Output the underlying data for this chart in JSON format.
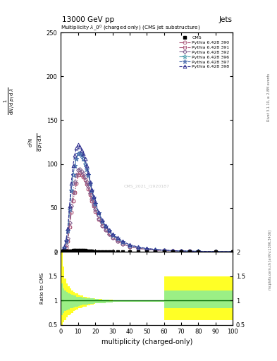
{
  "title_top": "13000 GeV pp",
  "title_right": "Jets",
  "plot_title": "Multiplicity $\\lambda\\_0^0$ (charged only) (CMS jet substructure)",
  "xlabel": "multiplicity (charged-only)",
  "ylabel_ratio": "Ratio to CMS",
  "watermark": "CMS_2021_I1920187",
  "rivet_label": "Rivet 3.1.10, ≥ 2.8M events",
  "mcplots_label": "mcplots.cern.ch [arXiv:1306.3436]",
  "series_labels": [
    "Pythia 6.428 390",
    "Pythia 6.428 391",
    "Pythia 6.428 392",
    "Pythia 6.428 396",
    "Pythia 6.428 397",
    "Pythia 6.428 398"
  ],
  "series_colors": [
    "#b06080",
    "#b06080",
    "#806090",
    "#50a0b0",
    "#5070b0",
    "#303090"
  ],
  "series_linestyles": [
    "-.",
    "-.",
    "-.",
    "-.",
    "--",
    "--"
  ],
  "series_markers": [
    "o",
    "s",
    "D",
    "*",
    "*",
    "^"
  ],
  "series_markersizes": [
    3.5,
    3.5,
    3.0,
    5.0,
    5.0,
    3.5
  ],
  "x_data": [
    1,
    2,
    3,
    4,
    5,
    6,
    7,
    8,
    9,
    10,
    11,
    12,
    13,
    14,
    15,
    16,
    17,
    18,
    19,
    20,
    22,
    24,
    26,
    28,
    30,
    33,
    36,
    40,
    45,
    50,
    55,
    60,
    65,
    70,
    75,
    80,
    90,
    100
  ],
  "cms_y": [
    0.5,
    0.5,
    0.5,
    0.8,
    1.0,
    1.2,
    1.5,
    1.8,
    2.0,
    2.0,
    2.0,
    2.0,
    1.8,
    1.5,
    1.2,
    1.0,
    0.8,
    0.5,
    0.3,
    0.3,
    0.2,
    0.2,
    0.2,
    0.2,
    0.2,
    0.1,
    0.1,
    0.1,
    0.1,
    0.1,
    0.1,
    0.1,
    0.1,
    0.05,
    0.05,
    0.05,
    0.02,
    0.02
  ],
  "series_y": [
    [
      1,
      2,
      5,
      12,
      28,
      45,
      58,
      68,
      78,
      88,
      90,
      88,
      85,
      82,
      77,
      72,
      65,
      58,
      52,
      46,
      37,
      30,
      25,
      20,
      16,
      12,
      9,
      6,
      4,
      2.8,
      2.0,
      1.4,
      1.0,
      0.7,
      0.5,
      0.35,
      0.2,
      0.1
    ],
    [
      1,
      2,
      5,
      12,
      28,
      45,
      58,
      68,
      78,
      88,
      90,
      88,
      85,
      82,
      77,
      72,
      65,
      58,
      52,
      46,
      37,
      30,
      25,
      20,
      16,
      12,
      9,
      6,
      4,
      2.8,
      2.0,
      1.4,
      1.0,
      0.7,
      0.5,
      0.35,
      0.2,
      0.1
    ],
    [
      1,
      3,
      7,
      15,
      33,
      52,
      68,
      80,
      88,
      93,
      94,
      92,
      89,
      85,
      80,
      75,
      67,
      60,
      54,
      48,
      38,
      30,
      25,
      20,
      16,
      12,
      9,
      6,
      4,
      2.8,
      2.0,
      1.4,
      1.0,
      0.7,
      0.5,
      0.35,
      0.2,
      0.1
    ],
    [
      2,
      5,
      12,
      24,
      48,
      70,
      88,
      98,
      106,
      112,
      113,
      110,
      106,
      100,
      94,
      88,
      78,
      70,
      62,
      55,
      44,
      35,
      29,
      24,
      19,
      15,
      11,
      7.5,
      5,
      3.5,
      2.5,
      1.8,
      1.2,
      0.9,
      0.7,
      0.5,
      0.3,
      0.15
    ],
    [
      2,
      5,
      12,
      24,
      48,
      70,
      88,
      98,
      106,
      112,
      113,
      110,
      106,
      100,
      94,
      88,
      78,
      70,
      62,
      55,
      44,
      35,
      29,
      24,
      19,
      15,
      11,
      7.5,
      5,
      3.5,
      2.5,
      1.8,
      1.2,
      0.9,
      0.7,
      0.5,
      0.3,
      0.15
    ],
    [
      2,
      6,
      14,
      27,
      52,
      78,
      98,
      110,
      118,
      122,
      120,
      116,
      112,
      106,
      98,
      90,
      80,
      71,
      63,
      57,
      45,
      36,
      30,
      25,
      20,
      16,
      12,
      8,
      5.5,
      3.8,
      2.8,
      2.0,
      1.4,
      1.0,
      0.75,
      0.55,
      0.3,
      0.15
    ]
  ],
  "ratio_yellow_x": [
    0,
    1,
    2,
    3,
    4,
    5,
    6,
    7,
    8,
    9,
    10,
    11,
    12,
    13,
    14,
    15,
    16,
    17,
    18,
    19,
    20,
    22,
    24,
    26,
    28,
    30,
    33,
    36,
    40,
    45,
    50,
    55,
    60,
    65,
    67,
    68,
    70,
    75,
    80,
    90,
    100
  ],
  "ratio_yellow_top": [
    2.0,
    1.7,
    1.45,
    1.35,
    1.3,
    1.25,
    1.2,
    1.18,
    1.15,
    1.15,
    1.12,
    1.1,
    1.1,
    1.08,
    1.08,
    1.06,
    1.06,
    1.05,
    1.05,
    1.04,
    1.03,
    1.03,
    1.02,
    1.02,
    1.02,
    1.01,
    1.01,
    1.01,
    1.01,
    1.01,
    1.01,
    1.01,
    1.5,
    1.5,
    1.5,
    1.5,
    1.5,
    1.5,
    1.5,
    1.5,
    1.5
  ],
  "ratio_yellow_bot": [
    0.5,
    0.55,
    0.6,
    0.65,
    0.7,
    0.72,
    0.75,
    0.78,
    0.8,
    0.82,
    0.84,
    0.85,
    0.86,
    0.88,
    0.88,
    0.9,
    0.9,
    0.91,
    0.92,
    0.93,
    0.94,
    0.94,
    0.95,
    0.96,
    0.96,
    0.97,
    0.97,
    0.97,
    0.97,
    0.97,
    0.97,
    0.97,
    0.6,
    0.6,
    0.6,
    0.6,
    0.6,
    0.6,
    0.6,
    0.6,
    0.6
  ],
  "ratio_green_top": [
    1.35,
    1.25,
    1.2,
    1.18,
    1.15,
    1.13,
    1.12,
    1.1,
    1.1,
    1.08,
    1.08,
    1.07,
    1.06,
    1.06,
    1.05,
    1.05,
    1.04,
    1.04,
    1.04,
    1.03,
    1.03,
    1.02,
    1.02,
    1.02,
    1.01,
    1.01,
    1.01,
    1.01,
    1.01,
    1.01,
    1.01,
    1.01,
    1.2,
    1.2,
    1.2,
    1.2,
    1.2,
    1.2,
    1.2,
    1.2,
    1.2
  ],
  "ratio_green_bot": [
    0.7,
    0.75,
    0.78,
    0.8,
    0.82,
    0.84,
    0.85,
    0.86,
    0.87,
    0.88,
    0.89,
    0.9,
    0.91,
    0.91,
    0.92,
    0.92,
    0.93,
    0.93,
    0.93,
    0.94,
    0.94,
    0.95,
    0.95,
    0.96,
    0.96,
    0.97,
    0.97,
    0.97,
    0.97,
    0.97,
    0.97,
    0.97,
    0.85,
    0.85,
    0.85,
    0.85,
    0.85,
    0.85,
    0.85,
    0.85,
    0.85
  ],
  "xlim": [
    0,
    100
  ],
  "ylim_main": [
    0,
    130
  ],
  "ylim_ratio": [
    0.5,
    2.0
  ],
  "yticks_main": [
    0,
    50,
    100,
    150,
    200,
    250
  ],
  "ytick_labels_main": [
    "0",
    "50",
    "100",
    "150",
    "200",
    "250"
  ],
  "yticks_ratio": [
    0.5,
    1.0,
    1.5,
    2.0
  ],
  "ytick_labels_ratio": [
    "0.5",
    "1",
    "1.5",
    "2"
  ],
  "xticks": [
    0,
    10,
    20,
    30,
    40,
    50,
    60,
    70,
    80,
    90,
    100
  ],
  "bg_color": "#ffffff"
}
